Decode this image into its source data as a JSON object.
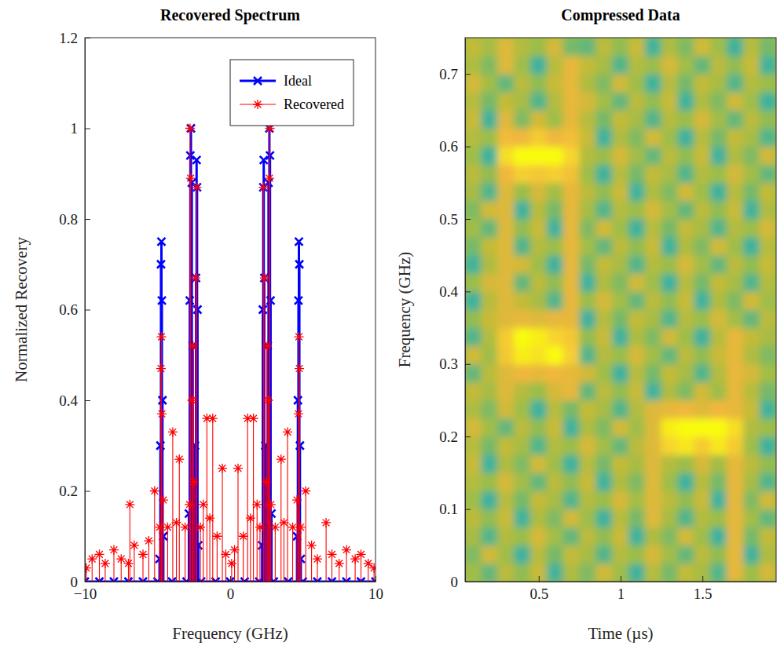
{
  "chart_data": [
    {
      "type": "stem",
      "title": "Recovered Spectrum",
      "x_label": "Frequency (GHz)",
      "y_label": "Normalized Recovery",
      "xlim": [
        -10,
        10
      ],
      "xticks": [
        {
          "value": -10,
          "label": "−10"
        },
        0,
        10
      ],
      "ylim": [
        0,
        1.2
      ],
      "yticks": [
        0,
        0.2,
        0.4,
        0.6,
        0.8,
        1,
        1.2
      ],
      "legend": "northeast",
      "series": [
        {
          "name": "Ideal",
          "color": "#0000ff",
          "marker": "x",
          "line_style": "solid",
          "x": [
            -10,
            -9,
            -8,
            -7,
            -6,
            -5,
            -4.86,
            -4.8,
            -4.76,
            -4.73,
            -4.7,
            -4.66,
            -4.6,
            -4,
            -3,
            -2.84,
            -2.78,
            -2.74,
            -2.7,
            -2.64,
            -2.58,
            -2.5,
            -2.42,
            -2.35,
            -2.31,
            -2.28,
            -2.25,
            -2.2,
            -2,
            -1,
            0,
            1,
            2,
            2.2,
            2.25,
            2.28,
            2.31,
            2.35,
            2.42,
            2.5,
            2.58,
            2.64,
            2.7,
            2.74,
            2.78,
            2.84,
            3,
            4,
            4.6,
            4.66,
            4.7,
            4.73,
            4.76,
            4.8,
            4.86,
            5,
            6,
            7,
            8,
            9,
            10
          ],
          "values": [
            0,
            0,
            0,
            0,
            0,
            0,
            0.05,
            0.3,
            0.7,
            0.75,
            0.62,
            0.4,
            0.1,
            0,
            0,
            0.15,
            0.62,
            0.94,
            1.0,
            0.88,
            0.52,
            0.22,
            0.3,
            0.67,
            0.93,
            0.87,
            0.6,
            0.08,
            0,
            0,
            0,
            0,
            0,
            0.08,
            0.6,
            0.87,
            0.93,
            0.67,
            0.3,
            0.22,
            0.52,
            0.88,
            1.0,
            0.94,
            0.62,
            0.15,
            0,
            0,
            0.1,
            0.4,
            0.62,
            0.75,
            0.7,
            0.3,
            0.05,
            0,
            0,
            0,
            0,
            0,
            0
          ]
        },
        {
          "name": "Recovered",
          "color": "#ff0000",
          "marker": "asterisk",
          "line_style": "solid",
          "x": [
            -9.9,
            -9.5,
            -9.0,
            -8.6,
            -8.0,
            -7.5,
            -7.0,
            -6.9,
            -6.6,
            -6.0,
            -5.6,
            -5.2,
            -4.85,
            -4.76,
            -4.73,
            -4.7,
            -4.6,
            -4.3,
            -3.95,
            -3.7,
            -3.5,
            -3.1,
            -2.8,
            -2.76,
            -2.72,
            -2.62,
            -2.55,
            -2.48,
            -2.38,
            -2.3,
            -2.05,
            -1.85,
            -1.6,
            -1.4,
            -1.2,
            -0.9,
            -0.54,
            -0.3,
            0.1,
            0.3,
            0.54,
            0.9,
            1.2,
            1.4,
            1.6,
            1.85,
            2.05,
            2.3,
            2.38,
            2.48,
            2.55,
            2.62,
            2.7,
            2.73,
            2.8,
            3.1,
            3.5,
            3.7,
            3.95,
            4.3,
            4.6,
            4.7,
            4.73,
            4.76,
            4.85,
            5.2,
            5.6,
            6.0,
            6.6,
            7.0,
            7.5,
            8.0,
            8.6,
            9.0,
            9.5,
            9.9
          ],
          "values": [
            0.03,
            0.05,
            0.06,
            0.04,
            0.07,
            0.05,
            0.04,
            0.17,
            0.08,
            0.06,
            0.09,
            0.2,
            0.12,
            0.47,
            0.54,
            0.37,
            0.18,
            0.12,
            0.33,
            0.13,
            0.27,
            0.12,
            0.17,
            1.0,
            0.89,
            0.4,
            0.52,
            0.22,
            0.67,
            0.87,
            0.12,
            0.17,
            0.36,
            0.14,
            0.36,
            0.1,
            0.25,
            0.06,
            0.04,
            0.07,
            0.25,
            0.1,
            0.36,
            0.14,
            0.36,
            0.17,
            0.12,
            0.87,
            0.67,
            0.22,
            0.52,
            0.4,
            0.89,
            1.0,
            0.17,
            0.12,
            0.27,
            0.13,
            0.33,
            0.12,
            0.18,
            0.37,
            0.54,
            0.47,
            0.12,
            0.2,
            0.08,
            0.05,
            0.13,
            0.06,
            0.04,
            0.07,
            0.05,
            0.06,
            0.04,
            0.03
          ]
        }
      ]
    },
    {
      "type": "heatmap",
      "title": "Compressed Data",
      "x_label": "Time (µs)",
      "y_label": "Frequency (GHz)",
      "xlim": [
        0.05,
        1.95
      ],
      "xticks": [
        0.5,
        1,
        1.5
      ],
      "ylim": [
        0,
        0.75
      ],
      "yticks": [
        0,
        0.1,
        0.2,
        0.3,
        0.4,
        0.5,
        0.6,
        0.7
      ],
      "color_range": [
        0,
        1
      ],
      "x": [
        0.1,
        0.2,
        0.3,
        0.4,
        0.5,
        0.6,
        0.7,
        0.8,
        0.9,
        1.0,
        1.1,
        1.2,
        1.3,
        1.4,
        1.5,
        1.6,
        1.7,
        1.8,
        1.9
      ],
      "y": [
        0.0125,
        0.0375,
        0.0625,
        0.0875,
        0.1125,
        0.1375,
        0.1625,
        0.1875,
        0.2125,
        0.2375,
        0.2625,
        0.2875,
        0.3125,
        0.3375,
        0.3625,
        0.3875,
        0.4125,
        0.4375,
        0.4625,
        0.4875,
        0.5125,
        0.5375,
        0.5625,
        0.5875,
        0.6125,
        0.6375,
        0.6625,
        0.6875,
        0.7125,
        0.7375
      ],
      "cells": [
        [
          0.52,
          0.44,
          0.58,
          0.49,
          0.61,
          0.4,
          0.55,
          0.47,
          0.63,
          0.51,
          0.38,
          0.57,
          0.46,
          0.6,
          0.53,
          0.42,
          0.68,
          0.5,
          0.64
        ],
        [
          0.47,
          0.63,
          0.51,
          0.38,
          0.57,
          0.46,
          0.6,
          0.53,
          0.42,
          0.56,
          0.5,
          0.64,
          0.52,
          0.44,
          0.58,
          0.49,
          0.68,
          0.4,
          0.55
        ],
        [
          0.53,
          0.42,
          0.56,
          0.5,
          0.64,
          0.52,
          0.44,
          0.58,
          0.49,
          0.61,
          0.4,
          0.55,
          0.47,
          0.63,
          0.51,
          0.38,
          0.68,
          0.46,
          0.6
        ],
        [
          0.58,
          0.49,
          0.61,
          0.4,
          0.55,
          0.47,
          0.63,
          0.51,
          0.38,
          0.57,
          0.46,
          0.66,
          0.53,
          0.42,
          0.56,
          0.5,
          0.68,
          0.52,
          0.44
        ],
        [
          0.51,
          0.38,
          0.57,
          0.46,
          0.6,
          0.53,
          0.42,
          0.56,
          0.5,
          0.64,
          0.52,
          0.66,
          0.58,
          0.49,
          0.61,
          0.4,
          0.68,
          0.47,
          0.63
        ],
        [
          0.56,
          0.5,
          0.64,
          0.52,
          0.44,
          0.58,
          0.49,
          0.61,
          0.4,
          0.55,
          0.47,
          0.66,
          0.51,
          0.38,
          0.57,
          0.46,
          0.68,
          0.53,
          0.42
        ],
        [
          0.61,
          0.4,
          0.55,
          0.47,
          0.63,
          0.51,
          0.38,
          0.57,
          0.46,
          0.6,
          0.53,
          0.66,
          0.56,
          0.5,
          0.64,
          0.52,
          0.68,
          0.58,
          0.49
        ],
        [
          0.57,
          0.46,
          0.6,
          0.53,
          0.42,
          0.56,
          0.5,
          0.64,
          0.52,
          0.44,
          0.58,
          0.66,
          0.85,
          0.92,
          0.8,
          0.92,
          0.8,
          0.51,
          0.38
        ],
        [
          0.64,
          0.52,
          0.44,
          0.58,
          0.49,
          0.61,
          0.4,
          0.55,
          0.47,
          0.63,
          0.51,
          0.66,
          0.95,
          1.0,
          1.0,
          1.0,
          0.88,
          0.56,
          0.5
        ],
        [
          0.55,
          0.47,
          0.63,
          0.51,
          0.38,
          0.57,
          0.46,
          0.6,
          0.53,
          0.42,
          0.56,
          0.66,
          0.68,
          0.7,
          0.66,
          0.7,
          0.68,
          0.61,
          0.4
        ],
        [
          0.6,
          0.53,
          0.66,
          0.56,
          0.5,
          0.64,
          0.68,
          0.44,
          0.58,
          0.49,
          0.61,
          0.4,
          0.55,
          0.47,
          0.63,
          0.51,
          0.68,
          0.57,
          0.46
        ],
        [
          0.44,
          0.58,
          0.66,
          0.7,
          0.68,
          0.7,
          0.68,
          0.63,
          0.51,
          0.38,
          0.57,
          0.46,
          0.6,
          0.53,
          0.42,
          0.56,
          0.68,
          0.64,
          0.52
        ],
        [
          0.63,
          0.51,
          0.78,
          0.95,
          0.9,
          1.0,
          0.82,
          0.42,
          0.56,
          0.5,
          0.64,
          0.52,
          0.44,
          0.58,
          0.49,
          0.61,
          0.68,
          0.55,
          0.47
        ],
        [
          0.42,
          0.56,
          0.8,
          1.0,
          0.95,
          0.85,
          0.78,
          0.49,
          0.61,
          0.4,
          0.55,
          0.47,
          0.63,
          0.51,
          0.38,
          0.57,
          0.68,
          0.6,
          0.53
        ],
        [
          0.49,
          0.61,
          0.66,
          0.68,
          0.66,
          0.68,
          0.68,
          0.38,
          0.57,
          0.46,
          0.6,
          0.53,
          0.42,
          0.56,
          0.5,
          0.64,
          0.52,
          0.44,
          0.58
        ],
        [
          0.38,
          0.57,
          0.66,
          0.6,
          0.53,
          0.42,
          0.68,
          0.5,
          0.64,
          0.52,
          0.44,
          0.58,
          0.49,
          0.61,
          0.4,
          0.55,
          0.47,
          0.63,
          0.51
        ],
        [
          0.5,
          0.64,
          0.66,
          0.44,
          0.58,
          0.49,
          0.68,
          0.4,
          0.55,
          0.47,
          0.63,
          0.51,
          0.38,
          0.57,
          0.46,
          0.6,
          0.53,
          0.42,
          0.56
        ],
        [
          0.4,
          0.55,
          0.66,
          0.63,
          0.51,
          0.38,
          0.68,
          0.46,
          0.6,
          0.53,
          0.42,
          0.56,
          0.5,
          0.64,
          0.52,
          0.44,
          0.58,
          0.49,
          0.61
        ],
        [
          0.46,
          0.6,
          0.66,
          0.42,
          0.56,
          0.5,
          0.68,
          0.52,
          0.44,
          0.58,
          0.49,
          0.61,
          0.4,
          0.55,
          0.47,
          0.63,
          0.51,
          0.38,
          0.57
        ],
        [
          0.52,
          0.44,
          0.66,
          0.49,
          0.61,
          0.4,
          0.68,
          0.47,
          0.63,
          0.51,
          0.38,
          0.57,
          0.46,
          0.6,
          0.53,
          0.42,
          0.56,
          0.5,
          0.64
        ],
        [
          0.47,
          0.63,
          0.66,
          0.38,
          0.57,
          0.46,
          0.68,
          0.53,
          0.42,
          0.56,
          0.5,
          0.64,
          0.52,
          0.44,
          0.58,
          0.49,
          0.61,
          0.4,
          0.55
        ],
        [
          0.53,
          0.42,
          0.66,
          0.5,
          0.64,
          0.52,
          0.68,
          0.58,
          0.49,
          0.61,
          0.4,
          0.55,
          0.47,
          0.63,
          0.51,
          0.38,
          0.57,
          0.46,
          0.6
        ],
        [
          0.58,
          0.49,
          0.7,
          0.82,
          0.78,
          0.82,
          0.75,
          0.51,
          0.38,
          0.57,
          0.46,
          0.6,
          0.53,
          0.42,
          0.56,
          0.5,
          0.64,
          0.52,
          0.44
        ],
        [
          0.51,
          0.38,
          0.88,
          1.0,
          1.0,
          1.0,
          0.85,
          0.56,
          0.5,
          0.64,
          0.52,
          0.44,
          0.58,
          0.49,
          0.61,
          0.4,
          0.55,
          0.47,
          0.63
        ],
        [
          0.56,
          0.5,
          0.72,
          0.7,
          0.8,
          0.7,
          0.74,
          0.61,
          0.4,
          0.55,
          0.47,
          0.63,
          0.51,
          0.38,
          0.57,
          0.46,
          0.6,
          0.53,
          0.42
        ],
        [
          0.61,
          0.4,
          0.66,
          0.47,
          0.63,
          0.51,
          0.68,
          0.57,
          0.46,
          0.6,
          0.53,
          0.42,
          0.56,
          0.5,
          0.64,
          0.52,
          0.44,
          0.58,
          0.49
        ],
        [
          0.57,
          0.46,
          0.6,
          0.53,
          0.42,
          0.56,
          0.68,
          0.64,
          0.52,
          0.44,
          0.58,
          0.49,
          0.61,
          0.4,
          0.55,
          0.47,
          0.63,
          0.51,
          0.38
        ],
        [
          0.64,
          0.52,
          0.44,
          0.58,
          0.49,
          0.61,
          0.68,
          0.55,
          0.47,
          0.63,
          0.51,
          0.38,
          0.57,
          0.46,
          0.6,
          0.53,
          0.42,
          0.56,
          0.5
        ],
        [
          0.55,
          0.47,
          0.66,
          0.51,
          0.38,
          0.57,
          0.68,
          0.6,
          0.53,
          0.42,
          0.56,
          0.5,
          0.64,
          0.52,
          0.44,
          0.58,
          0.49,
          0.61,
          0.4
        ],
        [
          0.6,
          0.53,
          0.66,
          0.56,
          0.5,
          0.64,
          0.46,
          0.44,
          0.58,
          0.49,
          0.61,
          0.4,
          0.55,
          0.47,
          0.63,
          0.51,
          0.38,
          0.57,
          0.46
        ]
      ]
    }
  ]
}
